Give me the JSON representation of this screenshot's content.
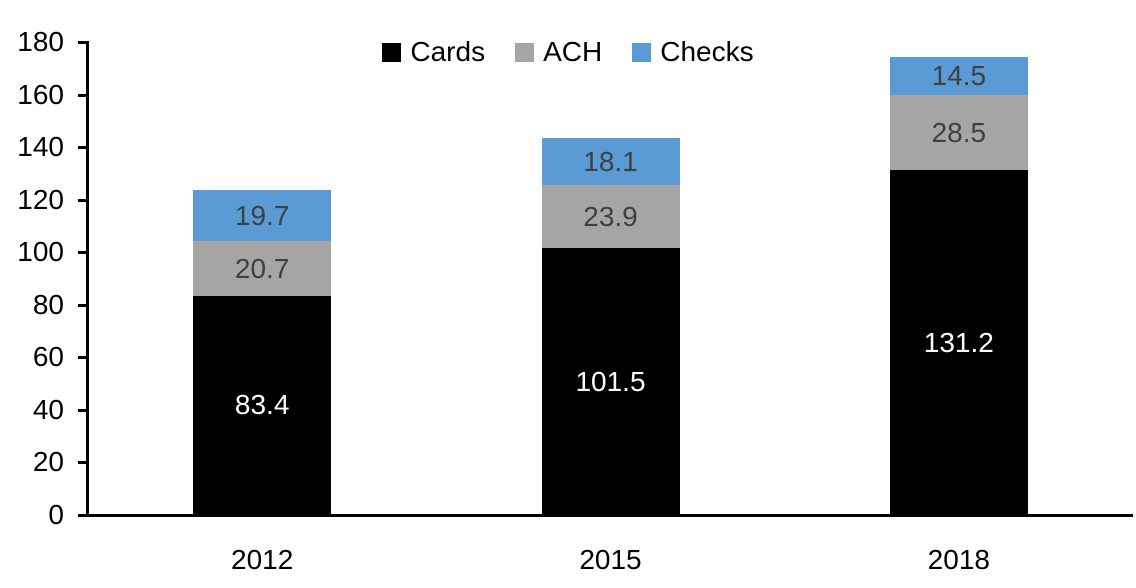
{
  "chart_data": {
    "type": "bar",
    "stacked": true,
    "title": "",
    "xlabel": "",
    "ylabel": "",
    "categories": [
      "2012",
      "2015",
      "2018"
    ],
    "series": [
      {
        "name": "Cards",
        "color": "#000000",
        "label_color": "#ffffff",
        "values": [
          83.4,
          101.5,
          131.2
        ]
      },
      {
        "name": "ACH",
        "color": "#a5a5a5",
        "label_color": "#404040",
        "values": [
          20.7,
          23.9,
          28.5
        ]
      },
      {
        "name": "Checks",
        "color": "#5b9bd5",
        "label_color": "#404040",
        "values": [
          19.7,
          18.1,
          14.5
        ]
      }
    ],
    "totals": [
      123.8,
      143.5,
      174.2
    ],
    "y_axis": {
      "min": 0,
      "max": 180,
      "step": 20,
      "tick_labels": [
        "0",
        "20",
        "40",
        "60",
        "80",
        "100",
        "120",
        "140",
        "160",
        "180"
      ]
    },
    "legend": {
      "position": "top",
      "entries": [
        "Cards",
        "ACH",
        "Checks"
      ]
    },
    "grid": false,
    "axis_color": "#000000",
    "background_color": "#ffffff"
  }
}
